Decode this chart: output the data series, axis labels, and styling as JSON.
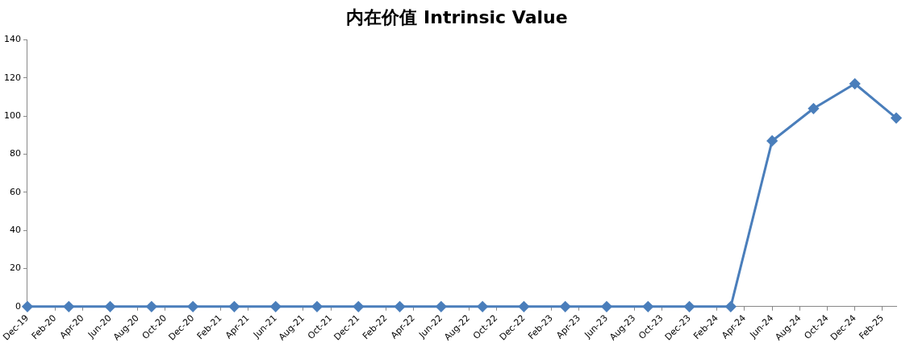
{
  "chart_data": {
    "type": "line",
    "title": "内在价值 Intrinsic Value",
    "x": [
      "2019-12",
      "2020-03",
      "2020-06",
      "2020-09",
      "2020-12",
      "2021-03",
      "2021-06",
      "2021-09",
      "2021-12",
      "2022-03",
      "2022-06",
      "2022-09",
      "2022-12",
      "2023-03",
      "2023-06",
      "2023-09",
      "2023-12",
      "2024-03",
      "2024-06",
      "2024-09",
      "2024-12",
      "2025-03"
    ],
    "series": [
      {
        "color": "#4a7ebb",
        "values": [
          0,
          0,
          0,
          0,
          0,
          0,
          0,
          0,
          0,
          0,
          0,
          0,
          0,
          0,
          0,
          0,
          0,
          0,
          87,
          104,
          117,
          99
        ]
      }
    ],
    "xlim": [
      "2019-12",
      "2025-03"
    ],
    "xticks": [
      {
        "value": "2019-12",
        "label": "Dec-19"
      },
      {
        "value": "2020-02",
        "label": "Feb-20"
      },
      {
        "value": "2020-04",
        "label": "Apr-20"
      },
      {
        "value": "2020-06",
        "label": "Jun-20"
      },
      {
        "value": "2020-08",
        "label": "Aug-20"
      },
      {
        "value": "2020-10",
        "label": "Oct-20"
      },
      {
        "value": "2020-12",
        "label": "Dec-20"
      },
      {
        "value": "2021-02",
        "label": "Feb-21"
      },
      {
        "value": "2021-04",
        "label": "Apr-21"
      },
      {
        "value": "2021-06",
        "label": "Jun-21"
      },
      {
        "value": "2021-08",
        "label": "Aug-21"
      },
      {
        "value": "2021-10",
        "label": "Oct-21"
      },
      {
        "value": "2021-12",
        "label": "Dec-21"
      },
      {
        "value": "2022-02",
        "label": "Feb-22"
      },
      {
        "value": "2022-04",
        "label": "Apr-22"
      },
      {
        "value": "2022-06",
        "label": "Jun-22"
      },
      {
        "value": "2022-08",
        "label": "Aug-22"
      },
      {
        "value": "2022-10",
        "label": "Oct-22"
      },
      {
        "value": "2022-12",
        "label": "Dec-22"
      },
      {
        "value": "2023-02",
        "label": "Feb-23"
      },
      {
        "value": "2023-04",
        "label": "Apr-23"
      },
      {
        "value": "2023-06",
        "label": "Jun-23"
      },
      {
        "value": "2023-08",
        "label": "Aug-23"
      },
      {
        "value": "2023-10",
        "label": "Oct-23"
      },
      {
        "value": "2023-12",
        "label": "Dec-23"
      },
      {
        "value": "2024-02",
        "label": "Feb-24"
      },
      {
        "value": "2024-04",
        "label": "Apr-24"
      },
      {
        "value": "2024-06",
        "label": "Jun-24"
      },
      {
        "value": "2024-08",
        "label": "Aug-24"
      },
      {
        "value": "2024-10",
        "label": "Oct-24"
      },
      {
        "value": "2024-12",
        "label": "Dec-24"
      },
      {
        "value": "2025-02",
        "label": "Feb-25"
      }
    ],
    "ylim": [
      0,
      140
    ],
    "yticks": [
      0,
      20,
      40,
      60,
      80,
      100,
      120,
      140
    ],
    "grid": false,
    "legend": false,
    "marker": "diamond",
    "line_style": "solid"
  }
}
